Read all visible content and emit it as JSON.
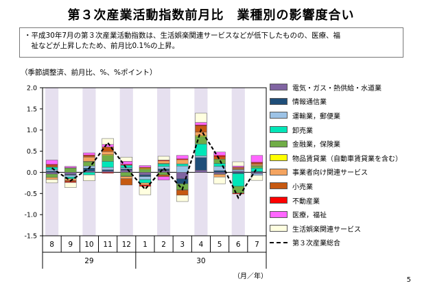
{
  "page": {
    "title": "第３次産業活動指数前月比　業種別の影響度合い",
    "note_line1": "・平成30年7月の第３次産業活動指数は、生活娯楽関連サービスなどが低下したものの、医療、福",
    "note_line2": "　祉などが上昇したため、前月比0.1%の上昇。",
    "units_label": "（季節調整済、前月比、%、%ポイント）",
    "axis_unit": "（月／年）",
    "page_number": "5"
  },
  "chart_data": {
    "type": "bar",
    "stacked": true,
    "ylim": [
      -1.5,
      2.0
    ],
    "yticks": [
      "2.0",
      "1.5",
      "1.0",
      "0.5",
      "0.0",
      "-0.5",
      "-1.0",
      "-1.5"
    ],
    "categories": [
      "8",
      "9",
      "10",
      "11",
      "12",
      "1",
      "2",
      "3",
      "4",
      "5",
      "6",
      "7"
    ],
    "year_groups": [
      {
        "label": "29",
        "from": 0,
        "to": 4
      },
      {
        "label": "30",
        "from": 5,
        "to": 11
      }
    ],
    "shaded_categories": [
      0,
      2,
      4,
      6,
      8,
      10
    ],
    "line": {
      "name": "第３次産業総合",
      "values": [
        0.1,
        -0.2,
        0.1,
        0.7,
        0.1,
        -0.4,
        0.1,
        -0.4,
        1.0,
        0.3,
        -0.6,
        0.1
      ]
    },
    "series": [
      {
        "name": "電気・ガス・熱供給・水道業",
        "color": "#8064a2",
        "values": [
          -0.04,
          -0.05,
          0.03,
          0.03,
          0.05,
          -0.06,
          0.04,
          -0.15,
          0.05,
          -0.04,
          0.03,
          -0.03
        ]
      },
      {
        "name": "情報通信業",
        "color": "#1f4e79",
        "values": [
          0.03,
          -0.02,
          0.07,
          0.03,
          0.03,
          -0.04,
          0.04,
          -0.12,
          0.3,
          0.04,
          -0.03,
          0.02
        ]
      },
      {
        "name": "運輸業，郵便業",
        "color": "#9dc3e6",
        "values": [
          0.04,
          -0.04,
          0.05,
          0.06,
          0.03,
          -0.07,
          0.06,
          0.15,
          0.04,
          0.1,
          0.03,
          -0.04
        ]
      },
      {
        "name": "卸売業",
        "color": "#00e6b8",
        "values": [
          0.05,
          -0.04,
          -0.06,
          0.14,
          0.06,
          -0.08,
          0.06,
          0.05,
          0.28,
          0.07,
          -0.3,
          0.08
        ]
      },
      {
        "name": "金融業，保険業",
        "color": "#70ad47",
        "values": [
          -0.08,
          0.1,
          0.1,
          0.14,
          -0.09,
          0.07,
          -0.06,
          -0.14,
          0.18,
          0.1,
          -0.16,
          0.05
        ]
      },
      {
        "name": "物品賃貸業（自動車賃貸業を含む）",
        "color": "#ffff00",
        "values": [
          0.01,
          0.01,
          0.01,
          0.02,
          -0.01,
          0.02,
          0.01,
          -0.01,
          0.02,
          -0.01,
          0.01,
          0.01
        ]
      },
      {
        "name": "事業者向け関連サービス",
        "color": "#f4a460",
        "values": [
          -0.05,
          -0.04,
          0.1,
          0.07,
          -0.05,
          -0.05,
          0.06,
          0.1,
          0.08,
          -0.06,
          0.02,
          0.03
        ]
      },
      {
        "name": "小売業",
        "color": "#c65911",
        "values": [
          0.04,
          -0.03,
          0.03,
          0.11,
          -0.15,
          0.03,
          -0.04,
          -0.12,
          0.15,
          0.06,
          0.03,
          0.03
        ]
      },
      {
        "name": "不動産業",
        "color": "#ff0000",
        "values": [
          0.02,
          -0.02,
          0.02,
          -0.02,
          0.02,
          -0.03,
          0.02,
          0.02,
          0.02,
          0.03,
          -0.02,
          0.02
        ]
      },
      {
        "name": "医療，福祉",
        "color": "#ff66ff",
        "values": [
          0.1,
          0.03,
          0.05,
          0.06,
          0.07,
          0.04,
          -0.08,
          0.08,
          0.06,
          0.08,
          0.03,
          0.16
        ]
      },
      {
        "name": "生活娯楽関連サービス",
        "color": "#ffffe0",
        "values": [
          -0.08,
          -0.12,
          -0.14,
          0.14,
          0.1,
          -0.2,
          0.09,
          -0.15,
          0.22,
          -0.16,
          0.1,
          -0.12
        ]
      }
    ]
  }
}
